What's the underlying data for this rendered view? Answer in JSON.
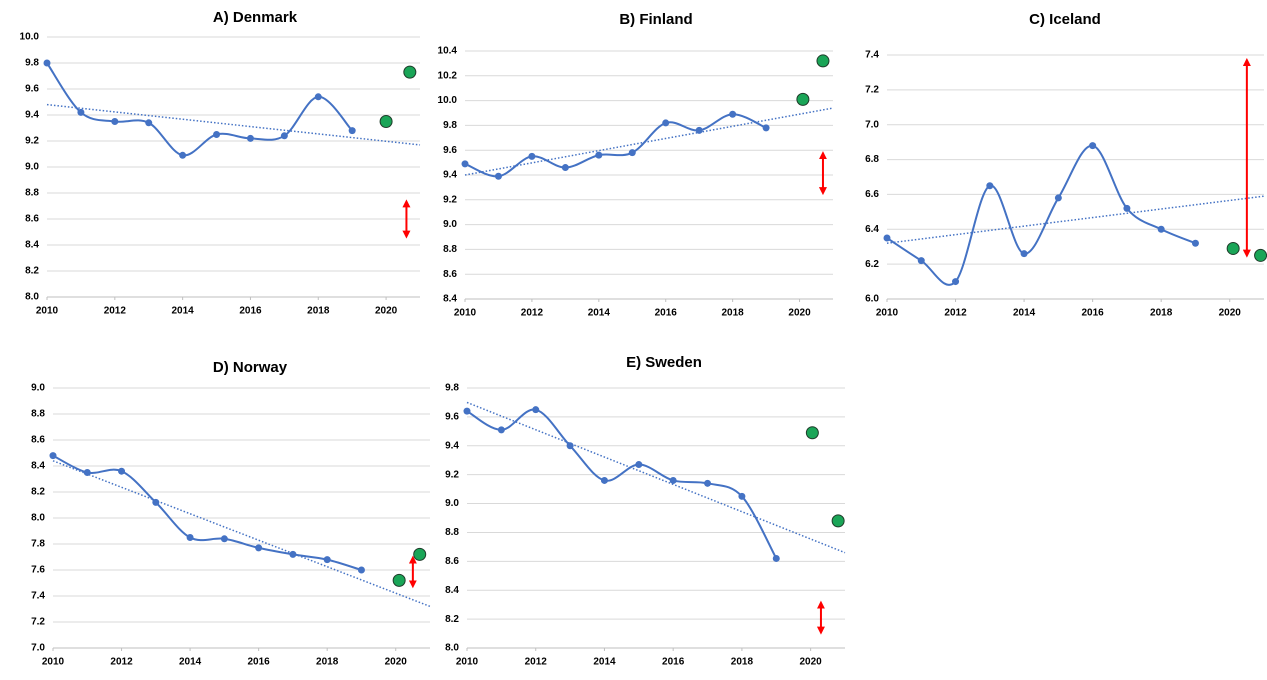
{
  "chart_data": [
    {
      "type": "line",
      "title": "A)  Denmark",
      "xlim": [
        2010,
        2021
      ],
      "xticks": [
        2010,
        2012,
        2014,
        2016,
        2018,
        2020
      ],
      "ylim": [
        8,
        10
      ],
      "yticks": [
        {
          "value": 8,
          "label": "8.0"
        },
        {
          "value": 8.2,
          "label": "8.2"
        },
        {
          "value": 8.4,
          "label": "8.4"
        },
        {
          "value": 8.6,
          "label": "8.6"
        },
        {
          "value": 8.8,
          "label": "8.8"
        },
        {
          "value": 9,
          "label": "9.0"
        },
        {
          "value": 9.2,
          "label": "9.2"
        },
        {
          "value": 9.4,
          "label": "9.4"
        },
        {
          "value": 9.6,
          "label": "9.6"
        },
        {
          "value": 9.8,
          "label": "9.8"
        },
        {
          "value": 10,
          "label": "10.0"
        }
      ],
      "grid": true,
      "series": [
        {
          "style": "smooth",
          "color": "#4472c4",
          "x": [
            2010,
            2011,
            2012,
            2013,
            2014,
            2015,
            2016,
            2017,
            2018,
            2019
          ],
          "values": [
            9.8,
            9.42,
            9.35,
            9.34,
            9.09,
            9.25,
            9.22,
            9.24,
            9.54,
            9.28
          ]
        },
        {
          "style": "trend",
          "color": "#4472c4",
          "x": [
            2010,
            2021
          ],
          "values": [
            9.48,
            9.17
          ]
        },
        {
          "style": "dots",
          "color": "#1aa557",
          "x": [
            2020,
            2020.7
          ],
          "values": [
            9.35,
            9.73
          ]
        }
      ],
      "arrow": {
        "color": "#ff0000",
        "x": 2020.6,
        "values": [
          8.72,
          8.48
        ]
      }
    },
    {
      "type": "line",
      "title": "B)  Finland",
      "xlim": [
        2010,
        2021
      ],
      "xticks": [
        2010,
        2012,
        2014,
        2016,
        2018,
        2020
      ],
      "ylim": [
        8.4,
        10.4
      ],
      "yticks": [
        {
          "value": 8.4,
          "label": "8.4"
        },
        {
          "value": 8.6,
          "label": "8.6"
        },
        {
          "value": 8.8,
          "label": "8.8"
        },
        {
          "value": 9,
          "label": "9.0"
        },
        {
          "value": 9.2,
          "label": "9.2"
        },
        {
          "value": 9.4,
          "label": "9.4"
        },
        {
          "value": 9.6,
          "label": "9.6"
        },
        {
          "value": 9.8,
          "label": "9.8"
        },
        {
          "value": 10,
          "label": "10.0"
        },
        {
          "value": 10.2,
          "label": "10.2"
        },
        {
          "value": 10.4,
          "label": "10.4"
        }
      ],
      "grid": true,
      "series": [
        {
          "style": "smooth",
          "color": "#4472c4",
          "x": [
            2010,
            2011,
            2012,
            2013,
            2014,
            2015,
            2016,
            2017,
            2018,
            2019
          ],
          "values": [
            9.49,
            9.39,
            9.55,
            9.46,
            9.56,
            9.58,
            9.82,
            9.76,
            9.89,
            9.78
          ]
        },
        {
          "style": "trend",
          "color": "#4472c4",
          "x": [
            2010,
            2021
          ],
          "values": [
            9.4,
            9.94
          ]
        },
        {
          "style": "dots",
          "color": "#1aa557",
          "x": [
            2020.1,
            2020.7
          ],
          "values": [
            10.01,
            10.32
          ]
        }
      ],
      "arrow": {
        "color": "#ff0000",
        "x": 2020.7,
        "values": [
          9.56,
          9.27
        ]
      }
    },
    {
      "type": "line",
      "title": "C)  Iceland",
      "xlim": [
        2010,
        2021
      ],
      "xticks": [
        2010,
        2012,
        2014,
        2016,
        2018,
        2020
      ],
      "ylim": [
        6,
        7.4
      ],
      "yticks": [
        {
          "value": 6,
          "label": "6.0"
        },
        {
          "value": 6.2,
          "label": "6.2"
        },
        {
          "value": 6.4,
          "label": "6.4"
        },
        {
          "value": 6.6,
          "label": "6.6"
        },
        {
          "value": 6.8,
          "label": "6.8"
        },
        {
          "value": 7,
          "label": "7.0"
        },
        {
          "value": 7.2,
          "label": "7.2"
        },
        {
          "value": 7.4,
          "label": "7.4"
        }
      ],
      "grid": true,
      "series": [
        {
          "style": "smooth",
          "color": "#4472c4",
          "x": [
            2010,
            2011,
            2012,
            2013,
            2014,
            2015,
            2016,
            2017,
            2018,
            2019
          ],
          "values": [
            6.35,
            6.22,
            6.1,
            6.65,
            6.26,
            6.58,
            6.88,
            6.52,
            6.4,
            6.32
          ]
        },
        {
          "style": "trend",
          "color": "#4472c4",
          "x": [
            2010,
            2021
          ],
          "values": [
            6.32,
            6.59
          ]
        },
        {
          "style": "dots",
          "color": "#1aa557",
          "x": [
            2020.1,
            2020.9
          ],
          "values": [
            6.29,
            6.25
          ]
        }
      ],
      "arrow": {
        "color": "#ff0000",
        "x": 2020.5,
        "values": [
          7.36,
          6.26
        ]
      }
    },
    {
      "type": "line",
      "title": "D)  Norway",
      "xlim": [
        2010,
        2021
      ],
      "xticks": [
        2010,
        2012,
        2014,
        2016,
        2018,
        2020
      ],
      "ylim": [
        7,
        9
      ],
      "yticks": [
        {
          "value": 7,
          "label": "7.0"
        },
        {
          "value": 7.2,
          "label": "7.2"
        },
        {
          "value": 7.4,
          "label": "7.4"
        },
        {
          "value": 7.6,
          "label": "7.6"
        },
        {
          "value": 7.8,
          "label": "7.8"
        },
        {
          "value": 8,
          "label": "8.0"
        },
        {
          "value": 8.2,
          "label": "8.2"
        },
        {
          "value": 8.4,
          "label": "8.4"
        },
        {
          "value": 8.6,
          "label": "8.6"
        },
        {
          "value": 8.8,
          "label": "8.8"
        },
        {
          "value": 9,
          "label": "9.0"
        }
      ],
      "grid": true,
      "series": [
        {
          "style": "smooth",
          "color": "#4472c4",
          "x": [
            2010,
            2011,
            2012,
            2013,
            2014,
            2015,
            2016,
            2017,
            2018,
            2019
          ],
          "values": [
            8.48,
            8.35,
            8.36,
            8.12,
            7.85,
            7.84,
            7.77,
            7.72,
            7.68,
            7.6
          ]
        },
        {
          "style": "trend",
          "color": "#4472c4",
          "x": [
            2010,
            2021
          ],
          "values": [
            8.44,
            7.32
          ]
        },
        {
          "style": "dots",
          "color": "#1aa557",
          "x": [
            2020.1,
            2020.7
          ],
          "values": [
            7.52,
            7.72
          ]
        }
      ],
      "arrow": {
        "color": "#ff0000",
        "x": 2020.5,
        "values": [
          7.68,
          7.49
        ]
      }
    },
    {
      "type": "line",
      "title": "E)  Sweden",
      "xlim": [
        2010,
        2021
      ],
      "xticks": [
        2010,
        2012,
        2014,
        2016,
        2018,
        2020
      ],
      "ylim": [
        8,
        9.8
      ],
      "yticks": [
        {
          "value": 8,
          "label": "8.0"
        },
        {
          "value": 8.2,
          "label": "8.2"
        },
        {
          "value": 8.4,
          "label": "8.4"
        },
        {
          "value": 8.6,
          "label": "8.6"
        },
        {
          "value": 8.8,
          "label": "8.8"
        },
        {
          "value": 9,
          "label": "9.0"
        },
        {
          "value": 9.2,
          "label": "9.2"
        },
        {
          "value": 9.4,
          "label": "9.4"
        },
        {
          "value": 9.6,
          "label": "9.6"
        },
        {
          "value": 9.8,
          "label": "9.8"
        }
      ],
      "grid": true,
      "series": [
        {
          "style": "smooth",
          "color": "#4472c4",
          "x": [
            2010,
            2011,
            2012,
            2013,
            2014,
            2015,
            2016,
            2017,
            2018,
            2019
          ],
          "values": [
            9.64,
            9.51,
            9.65,
            9.4,
            9.16,
            9.27,
            9.16,
            9.14,
            9.05,
            8.62
          ]
        },
        {
          "style": "trend",
          "color": "#4472c4",
          "x": [
            2010,
            2021
          ],
          "values": [
            9.7,
            8.66
          ]
        },
        {
          "style": "dots",
          "color": "#1aa557",
          "x": [
            2020.05,
            2020.8
          ],
          "values": [
            9.49,
            8.88
          ]
        }
      ],
      "arrow": {
        "color": "#ff0000",
        "x": 2020.3,
        "values": [
          8.3,
          8.12
        ]
      }
    }
  ]
}
